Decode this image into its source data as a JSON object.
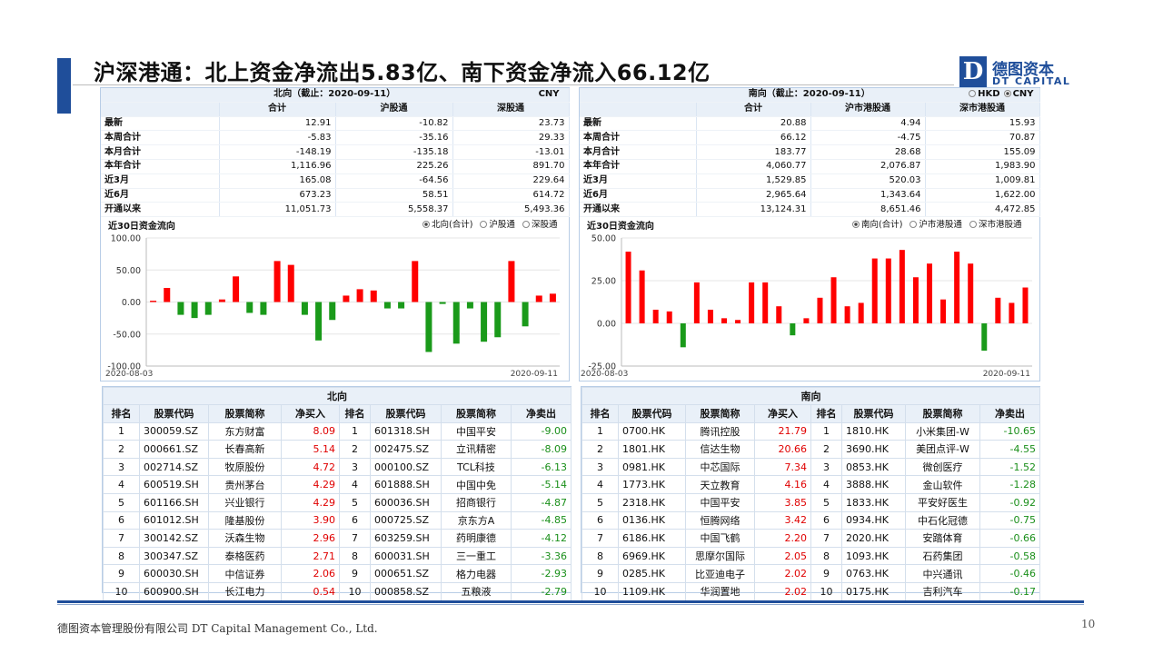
{
  "slide": {
    "title": "沪深港通：北上资金净流出5.83亿、南下资金净流入66.12亿",
    "logo": {
      "mark": "D",
      "cn": "德图资本",
      "en": "DT CAPITAL"
    },
    "footer": "德图资本管理股份有限公司 DT Capital Management Co., Ltd.",
    "page_number": "10",
    "colors": {
      "accent": "#1f4e9a",
      "inflow": "#ff0000",
      "outflow": "#1a9a1a",
      "header_bg": "#e9f0f8"
    }
  },
  "north": {
    "title": "北向（截止：2020-09-11）",
    "currency": "CNY",
    "columns": [
      "合计",
      "沪股通",
      "深股通"
    ],
    "rows": [
      {
        "label": "最新",
        "values": [
          "12.91",
          "-10.82",
          "23.73"
        ]
      },
      {
        "label": "本周合计",
        "values": [
          "-5.83",
          "-35.16",
          "29.33"
        ]
      },
      {
        "label": "本月合计",
        "values": [
          "-148.19",
          "-135.18",
          "-13.01"
        ]
      },
      {
        "label": "本年合计",
        "values": [
          "1,116.96",
          "225.26",
          "891.70"
        ]
      },
      {
        "label": "近3月",
        "values": [
          "165.08",
          "-64.56",
          "229.64"
        ]
      },
      {
        "label": "近6月",
        "values": [
          "673.23",
          "58.51",
          "614.72"
        ]
      },
      {
        "label": "开通以来",
        "values": [
          "11,051.73",
          "5,558.37",
          "5,493.36"
        ]
      }
    ],
    "flow_title": "近30日资金流向",
    "radio": [
      "北向(合计)",
      "沪股通",
      "深股通"
    ],
    "radio_selected": 0
  },
  "south": {
    "title": "南向（截止：2020-09-11）",
    "currency_options": [
      "HKD",
      "CNY"
    ],
    "currency_selected": 1,
    "columns": [
      "合计",
      "沪市港股通",
      "深市港股通"
    ],
    "rows": [
      {
        "label": "最新",
        "values": [
          "20.88",
          "4.94",
          "15.93"
        ]
      },
      {
        "label": "本周合计",
        "values": [
          "66.12",
          "-4.75",
          "70.87"
        ]
      },
      {
        "label": "本月合计",
        "values": [
          "183.77",
          "28.68",
          "155.09"
        ]
      },
      {
        "label": "本年合计",
        "values": [
          "4,060.77",
          "2,076.87",
          "1,983.90"
        ]
      },
      {
        "label": "近3月",
        "values": [
          "1,529.85",
          "520.03",
          "1,009.81"
        ]
      },
      {
        "label": "近6月",
        "values": [
          "2,965.64",
          "1,343.64",
          "1,622.00"
        ]
      },
      {
        "label": "开通以来",
        "values": [
          "13,124.31",
          "8,651.46",
          "4,472.85"
        ]
      }
    ],
    "flow_title": "近30日资金流向",
    "radio": [
      "南向(合计)",
      "沪市港股通",
      "深市港股通"
    ],
    "radio_selected": 0
  },
  "chart_data": [
    {
      "type": "bar",
      "title": "近30日资金流向",
      "x_start_label": "2020-08-03",
      "x_end_label": "2020-09-11",
      "ylim": [
        -100,
        100
      ],
      "yticks": [
        "100.00",
        "50.00",
        "0.00",
        "-50.00",
        "-100.00"
      ],
      "ytick_values": [
        100,
        50,
        0,
        -50,
        -100
      ],
      "grid": true,
      "positive_color": "#ff0000",
      "negative_color": "#1a9a1a",
      "values": [
        2,
        22,
        -20,
        -25,
        -20,
        4,
        40,
        -17,
        -20,
        64,
        58,
        -20,
        -60,
        -28,
        10,
        20,
        18,
        -10,
        -10,
        64,
        -78,
        -3,
        -65,
        -10,
        -62,
        -55,
        64,
        -38,
        10,
        13
      ]
    },
    {
      "type": "bar",
      "title": "近30日资金流向",
      "x_start_label": "2020-08-03",
      "x_end_label": "2020-09-11",
      "ylim": [
        -25,
        50
      ],
      "yticks": [
        "50.00",
        "25.00",
        "0.00",
        "-25.00"
      ],
      "ytick_values": [
        50,
        25,
        0,
        -25
      ],
      "grid": true,
      "positive_color": "#ff0000",
      "negative_color": "#1a9a1a",
      "values": [
        42,
        31,
        8,
        7,
        -14,
        24,
        8,
        3,
        2,
        24,
        24,
        10,
        -7,
        3,
        15,
        27,
        10,
        12,
        38,
        38,
        43,
        27,
        35,
        14,
        42,
        35,
        -16,
        15,
        12,
        21
      ]
    }
  ],
  "north_top": {
    "section": "北向",
    "headers": [
      "排名",
      "股票代码",
      "股票简称",
      "净买入",
      "排名",
      "股票代码",
      "股票简称",
      "净卖出"
    ],
    "rows": [
      [
        "1",
        "300059.SZ",
        "东方财富",
        "8.09",
        "1",
        "601318.SH",
        "中国平安",
        "-9.00"
      ],
      [
        "2",
        "000661.SZ",
        "长春高新",
        "5.14",
        "2",
        "002475.SZ",
        "立讯精密",
        "-8.09"
      ],
      [
        "3",
        "002714.SZ",
        "牧原股份",
        "4.72",
        "3",
        "000100.SZ",
        "TCL科技",
        "-6.13"
      ],
      [
        "4",
        "600519.SH",
        "贵州茅台",
        "4.29",
        "4",
        "601888.SH",
        "中国中免",
        "-5.14"
      ],
      [
        "5",
        "601166.SH",
        "兴业银行",
        "4.29",
        "5",
        "600036.SH",
        "招商银行",
        "-4.87"
      ],
      [
        "6",
        "601012.SH",
        "隆基股份",
        "3.90",
        "6",
        "000725.SZ",
        "京东方A",
        "-4.85"
      ],
      [
        "7",
        "300142.SZ",
        "沃森生物",
        "2.96",
        "7",
        "603259.SH",
        "药明康德",
        "-4.12"
      ],
      [
        "8",
        "300347.SZ",
        "泰格医药",
        "2.71",
        "8",
        "600031.SH",
        "三一重工",
        "-3.36"
      ],
      [
        "9",
        "600030.SH",
        "中信证券",
        "2.06",
        "9",
        "000651.SZ",
        "格力电器",
        "-2.93"
      ],
      [
        "10",
        "600900.SH",
        "长江电力",
        "0.54",
        "10",
        "000858.SZ",
        "五粮液",
        "-2.79"
      ]
    ]
  },
  "south_top": {
    "section": "南向",
    "headers": [
      "排名",
      "股票代码",
      "股票简称",
      "净买入",
      "排名",
      "股票代码",
      "股票简称",
      "净卖出"
    ],
    "rows": [
      [
        "1",
        "0700.HK",
        "腾讯控股",
        "21.79",
        "1",
        "1810.HK",
        "小米集团-W",
        "-10.65"
      ],
      [
        "2",
        "1801.HK",
        "信达生物",
        "20.66",
        "2",
        "3690.HK",
        "美团点评-W",
        "-4.55"
      ],
      [
        "3",
        "0981.HK",
        "中芯国际",
        "7.34",
        "3",
        "0853.HK",
        "微创医疗",
        "-1.52"
      ],
      [
        "4",
        "1773.HK",
        "天立教育",
        "4.16",
        "4",
        "3888.HK",
        "金山软件",
        "-1.28"
      ],
      [
        "5",
        "2318.HK",
        "中国平安",
        "3.85",
        "5",
        "1833.HK",
        "平安好医生",
        "-0.92"
      ],
      [
        "6",
        "0136.HK",
        "恒腾网络",
        "3.42",
        "6",
        "0934.HK",
        "中石化冠德",
        "-0.75"
      ],
      [
        "7",
        "6186.HK",
        "中国飞鹤",
        "2.20",
        "7",
        "2020.HK",
        "安踏体育",
        "-0.66"
      ],
      [
        "8",
        "6969.HK",
        "思摩尔国际",
        "2.05",
        "8",
        "1093.HK",
        "石药集团",
        "-0.58"
      ],
      [
        "9",
        "0285.HK",
        "比亚迪电子",
        "2.02",
        "9",
        "0763.HK",
        "中兴通讯",
        "-0.46"
      ],
      [
        "10",
        "1109.HK",
        "华润置地",
        "2.02",
        "10",
        "0175.HK",
        "吉利汽车",
        "-0.17"
      ]
    ]
  }
}
